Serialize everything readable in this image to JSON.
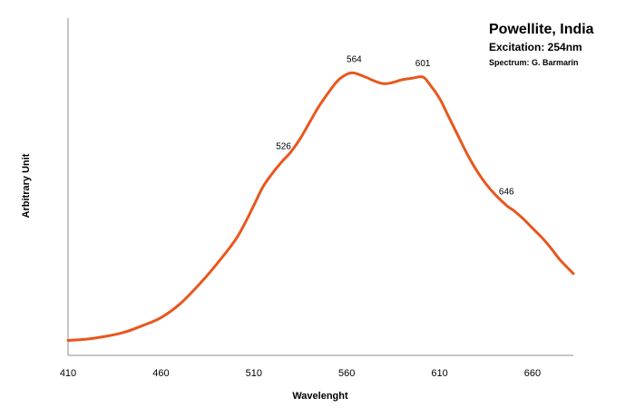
{
  "chart_data": {
    "type": "line",
    "title": "Powellite, India",
    "subtitle": "Excitation: 254nm",
    "credit": "Spectrum: G. Barmarin",
    "xlabel": "Wavelenght",
    "ylabel": "Arbitrary Unit",
    "xlim": [
      410,
      682
    ],
    "ylim": [
      0,
      100
    ],
    "x_ticks": [
      "410",
      "460",
      "510",
      "560",
      "610",
      "660"
    ],
    "grid": false,
    "line_color": "#E8571E",
    "series": [
      {
        "x": [
          410,
          420,
          430,
          440,
          450,
          460,
          470,
          480,
          490,
          500,
          505,
          510,
          515,
          520,
          526,
          530,
          535,
          540,
          545,
          550,
          555,
          560,
          564,
          570,
          575,
          580,
          585,
          590,
          595,
          601,
          605,
          610,
          615,
          620,
          625,
          630,
          635,
          640,
          646,
          650,
          655,
          660,
          665,
          670,
          675,
          682
        ],
        "y": [
          0.5,
          1,
          2,
          3.5,
          6,
          9,
          14,
          21,
          29,
          38,
          44,
          51,
          58,
          63,
          68,
          71,
          76,
          82,
          88,
          93,
          97.5,
          100,
          100.5,
          99,
          97.5,
          96.5,
          97,
          98,
          98.5,
          99,
          96,
          91,
          84,
          77,
          70,
          64,
          59,
          55,
          51,
          49,
          46,
          42.5,
          39,
          35,
          30.5,
          25.5
        ]
      }
    ],
    "annotations": [
      {
        "x": 526,
        "y": 68,
        "label": "526"
      },
      {
        "x": 564,
        "y": 100.5,
        "label": "564"
      },
      {
        "x": 601,
        "y": 99,
        "label": "601"
      },
      {
        "x": 646,
        "y": 51,
        "label": "646"
      }
    ]
  }
}
